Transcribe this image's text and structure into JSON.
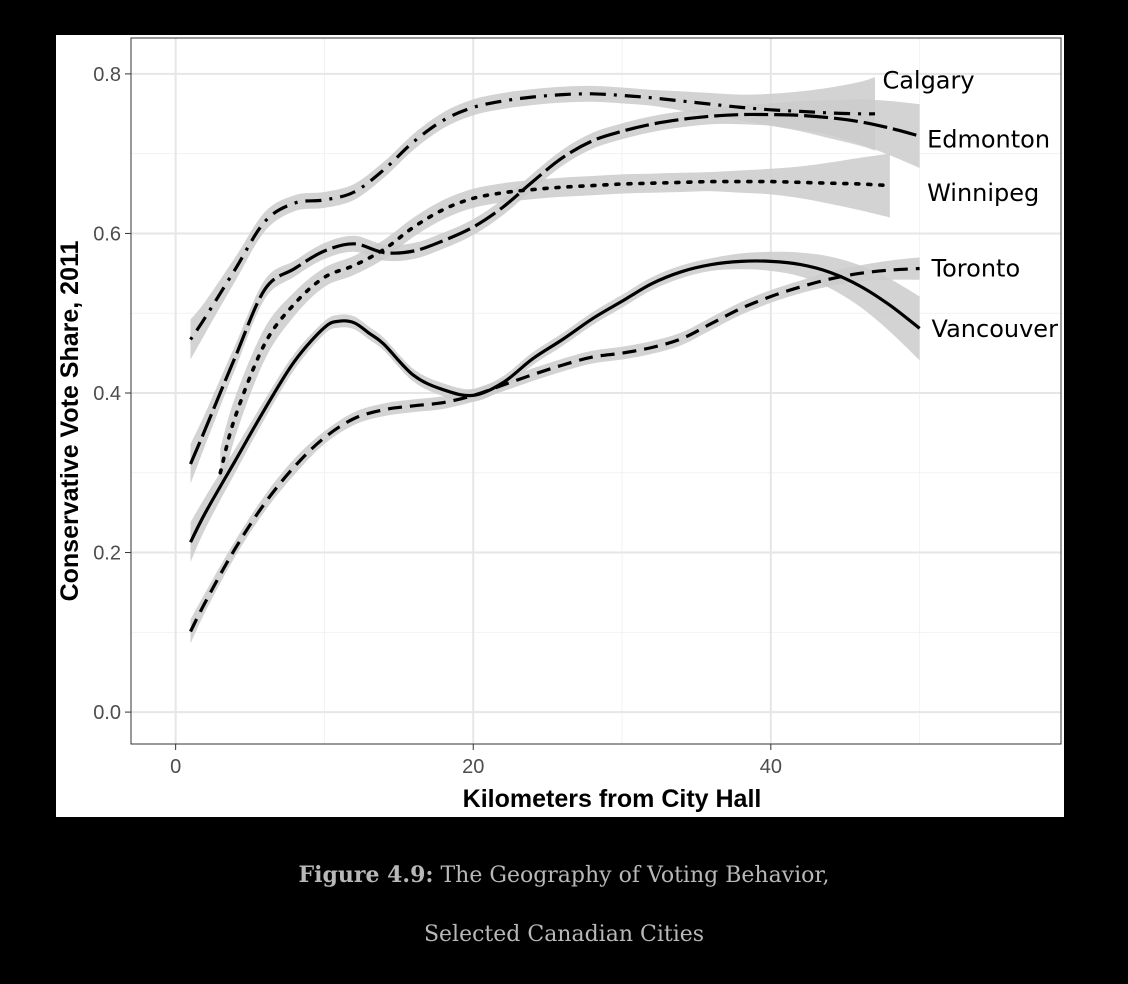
{
  "chart_data": {
    "type": "line",
    "xlabel": "Kilometers from City Hall",
    "ylabel": "Conservative Vote Share, 2011",
    "xlim": [
      -3.0,
      59.5
    ],
    "ylim": [
      -0.04,
      0.845
    ],
    "xticks": [
      "0",
      "20",
      "40"
    ],
    "xtick_values": [
      0,
      20,
      40
    ],
    "yticks": [
      "0.0",
      "0.2",
      "0.4",
      "0.6",
      "0.8"
    ],
    "ytick_values": [
      0.0,
      0.2,
      0.4,
      0.6,
      0.8
    ],
    "grid": true,
    "legend": "direct labels at line ends",
    "series": [
      {
        "name": "Calgary",
        "line_style": "dot-dash",
        "x": [
          1,
          2,
          4,
          6,
          8,
          10,
          12,
          14,
          16,
          18,
          20,
          22,
          24,
          26,
          28,
          30,
          32,
          34,
          36,
          38,
          40,
          42,
          44,
          46,
          47
        ],
        "y": [
          0.467,
          0.495,
          0.555,
          0.615,
          0.638,
          0.642,
          0.652,
          0.68,
          0.715,
          0.742,
          0.758,
          0.766,
          0.771,
          0.774,
          0.775,
          0.773,
          0.77,
          0.766,
          0.762,
          0.758,
          0.755,
          0.753,
          0.751,
          0.75,
          0.75
        ],
        "band": [
          0.025,
          0.02,
          0.015,
          0.012,
          0.01,
          0.01,
          0.01,
          0.01,
          0.01,
          0.01,
          0.01,
          0.01,
          0.01,
          0.01,
          0.01,
          0.01,
          0.01,
          0.012,
          0.014,
          0.016,
          0.02,
          0.025,
          0.032,
          0.04,
          0.046
        ]
      },
      {
        "name": "Edmonton",
        "line_style": "long-dash",
        "x": [
          1,
          2,
          4,
          6,
          8,
          10,
          12,
          14,
          16,
          18,
          20,
          22,
          24,
          26,
          28,
          30,
          32,
          34,
          36,
          38,
          40,
          42,
          44,
          46,
          48,
          50
        ],
        "y": [
          0.311,
          0.355,
          0.445,
          0.53,
          0.556,
          0.578,
          0.587,
          0.576,
          0.578,
          0.591,
          0.608,
          0.633,
          0.665,
          0.695,
          0.716,
          0.728,
          0.737,
          0.743,
          0.747,
          0.749,
          0.749,
          0.748,
          0.745,
          0.74,
          0.732,
          0.722
        ],
        "band": [
          0.025,
          0.02,
          0.015,
          0.012,
          0.01,
          0.01,
          0.01,
          0.01,
          0.01,
          0.01,
          0.01,
          0.01,
          0.01,
          0.01,
          0.01,
          0.01,
          0.01,
          0.01,
          0.01,
          0.012,
          0.014,
          0.018,
          0.022,
          0.028,
          0.034,
          0.04
        ]
      },
      {
        "name": "Winnipeg",
        "line_style": "dotted",
        "x": [
          3,
          4,
          6,
          8,
          10,
          12,
          14,
          16,
          18,
          20,
          22,
          24,
          26,
          28,
          30,
          32,
          34,
          36,
          38,
          40,
          42,
          44,
          46,
          48
        ],
        "y": [
          0.3,
          0.37,
          0.462,
          0.512,
          0.545,
          0.56,
          0.58,
          0.608,
          0.63,
          0.644,
          0.651,
          0.655,
          0.658,
          0.66,
          0.662,
          0.663,
          0.664,
          0.665,
          0.665,
          0.665,
          0.664,
          0.663,
          0.662,
          0.66
        ],
        "band": [
          0.03,
          0.025,
          0.02,
          0.015,
          0.012,
          0.012,
          0.012,
          0.012,
          0.012,
          0.012,
          0.012,
          0.012,
          0.012,
          0.012,
          0.012,
          0.012,
          0.012,
          0.012,
          0.014,
          0.016,
          0.02,
          0.026,
          0.033,
          0.04
        ]
      },
      {
        "name": "Toronto",
        "line_style": "dashed",
        "x": [
          1,
          2,
          4,
          6,
          8,
          10,
          12,
          14,
          16,
          18,
          20,
          22,
          24,
          26,
          28,
          30,
          32,
          34,
          36,
          38,
          40,
          42,
          44,
          46,
          48,
          50
        ],
        "y": [
          0.101,
          0.138,
          0.205,
          0.262,
          0.308,
          0.344,
          0.368,
          0.379,
          0.384,
          0.388,
          0.397,
          0.41,
          0.423,
          0.435,
          0.445,
          0.45,
          0.457,
          0.468,
          0.487,
          0.506,
          0.521,
          0.533,
          0.543,
          0.55,
          0.554,
          0.556
        ],
        "band": [
          0.015,
          0.012,
          0.01,
          0.01,
          0.01,
          0.008,
          0.008,
          0.008,
          0.008,
          0.008,
          0.008,
          0.008,
          0.008,
          0.008,
          0.008,
          0.008,
          0.008,
          0.008,
          0.008,
          0.008,
          0.008,
          0.008,
          0.009,
          0.01,
          0.012,
          0.014
        ]
      },
      {
        "name": "Vancouver",
        "line_style": "solid",
        "x": [
          1,
          2,
          4,
          6,
          8,
          10,
          11,
          12,
          13,
          14,
          16,
          18,
          20,
          22,
          24,
          26,
          28,
          30,
          32,
          34,
          36,
          38,
          40,
          42,
          44,
          46,
          48,
          50
        ],
        "y": [
          0.213,
          0.25,
          0.315,
          0.38,
          0.44,
          0.482,
          0.49,
          0.488,
          0.475,
          0.461,
          0.422,
          0.404,
          0.397,
          0.413,
          0.443,
          0.467,
          0.493,
          0.515,
          0.537,
          0.552,
          0.561,
          0.565,
          0.565,
          0.561,
          0.551,
          0.534,
          0.51,
          0.481
        ],
        "band": [
          0.025,
          0.02,
          0.015,
          0.012,
          0.01,
          0.008,
          0.008,
          0.008,
          0.008,
          0.008,
          0.008,
          0.008,
          0.008,
          0.008,
          0.008,
          0.008,
          0.008,
          0.008,
          0.008,
          0.008,
          0.008,
          0.01,
          0.012,
          0.015,
          0.02,
          0.026,
          0.033,
          0.04
        ]
      }
    ],
    "labels": [
      {
        "text": "Calgary",
        "x": 47.5,
        "y": 0.792
      },
      {
        "text": "Edmonton",
        "x": 50.5,
        "y": 0.718
      },
      {
        "text": "Winnipeg",
        "x": 50.5,
        "y": 0.651
      },
      {
        "text": "Toronto",
        "x": 50.8,
        "y": 0.556
      },
      {
        "text": "Vancouver",
        "x": 50.8,
        "y": 0.48
      }
    ]
  },
  "caption": {
    "figure_label": "Figure 4.9:",
    "title_line_1": " The Geography of Voting Behavior,",
    "title_line_2": "Selected Canadian Cities"
  },
  "colors": {
    "line": "#000000",
    "band": "#cbcbcb",
    "grid_major": "#e6e6e6",
    "grid_minor": "#f2f2f2",
    "frame": "#333333",
    "background": "#000000",
    "caption": "#b8b8b8"
  }
}
